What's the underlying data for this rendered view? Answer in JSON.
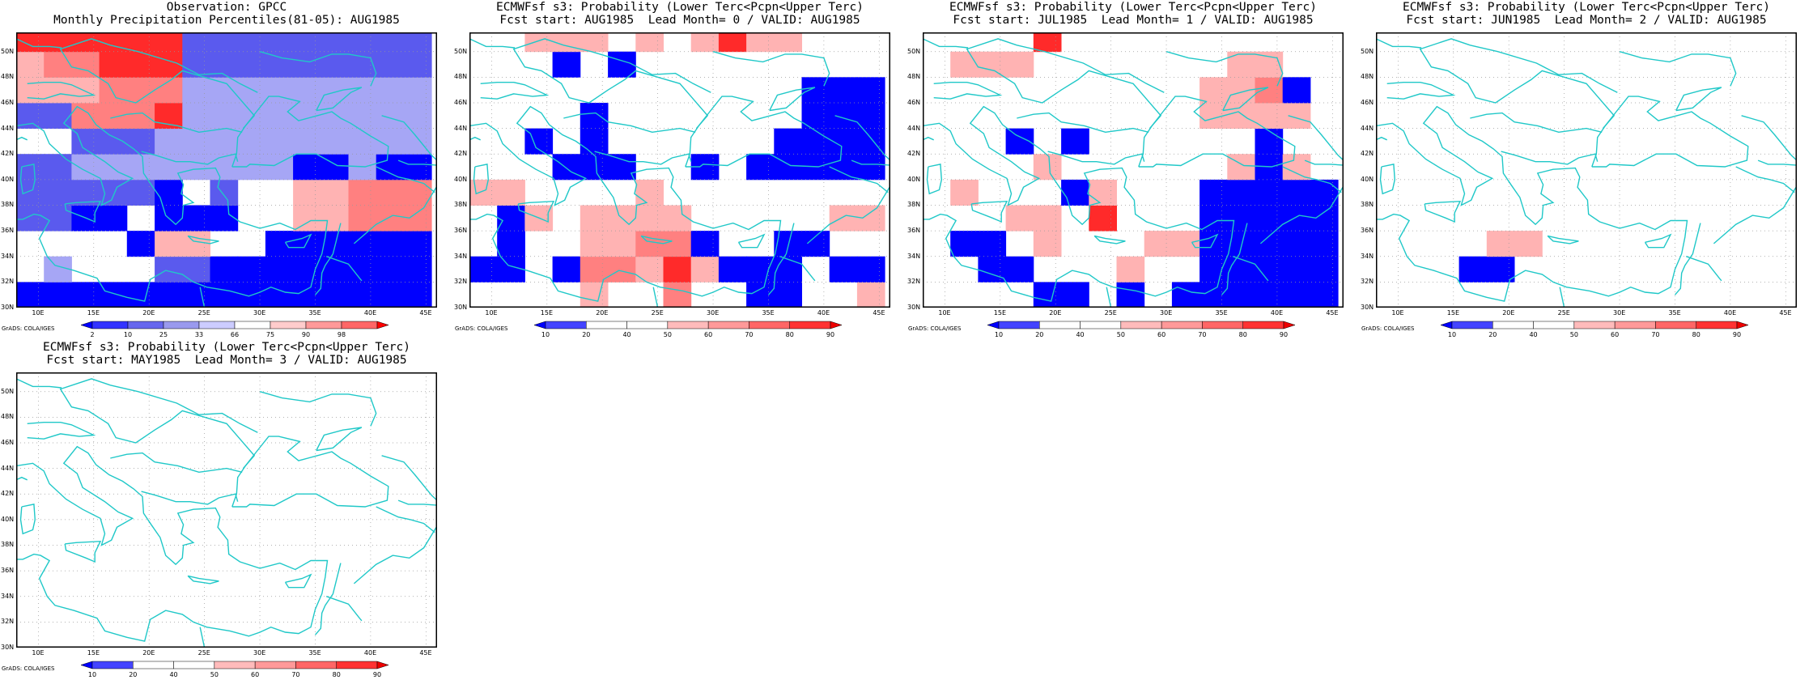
{
  "credit": "GrADS: COLA/IGES",
  "lon_labels": [
    "10E",
    "15E",
    "20E",
    "25E",
    "30E",
    "35E",
    "40E",
    "45E"
  ],
  "lat_labels": [
    "30N",
    "32N",
    "34N",
    "36N",
    "38N",
    "40N",
    "42N",
    "44N",
    "46N",
    "48N",
    "50N"
  ],
  "extent": {
    "lon": [
      8,
      46
    ],
    "lat": [
      30,
      51.5
    ]
  },
  "colorbars": {
    "obs": {
      "labels": [
        "2",
        "10",
        "25",
        "33",
        "66",
        "75",
        "90",
        "98"
      ],
      "colors": [
        "#0000ff",
        "#3333ff",
        "#6666ee",
        "#9999ee",
        "#ccccff",
        "#ffffff",
        "#ffcccc",
        "#ff9999",
        "#ff6666",
        "#ff0000"
      ]
    },
    "prob": {
      "labels": [
        "10",
        "20",
        "40",
        "50",
        "60",
        "70",
        "80",
        "90"
      ],
      "colors": [
        "#0000ff",
        "#4444ff",
        "#ffffff",
        "#ffffff",
        "#ffbbbb",
        "#ff9999",
        "#ff6666",
        "#ff3333",
        "#ee0000"
      ]
    }
  },
  "panels": [
    {
      "id": "obs",
      "title1": "Observation: GPCC",
      "title2": "Monthly Precipitation Percentiles(81-05): AUG1985",
      "bar": "obs"
    },
    {
      "id": "lead0",
      "title1": "ECMWFsf s3: Probability (Lower Terc<Pcpn<Upper Terc)",
      "title2": "Fcst start: AUG1985  Lead Month= 0 / VALID: AUG1985",
      "bar": "prob"
    },
    {
      "id": "lead1",
      "title1": "ECMWFsf s3: Probability (Lower Terc<Pcpn<Upper Terc)",
      "title2": "Fcst start: JUL1985  Lead Month= 1 / VALID: AUG1985",
      "bar": "prob"
    },
    {
      "id": "lead2",
      "title1": "ECMWFsf s3: Probability (Lower Terc<Pcpn<Upper Terc)",
      "title2": "Fcst start: JUN1985  Lead Month= 2 / VALID: AUG1985",
      "bar": "prob"
    },
    {
      "id": "lead3",
      "title1": "ECMWFsf s3: Probability (Lower Terc<Pcpn<Upper Terc)",
      "title2": "Fcst start: MAY1985  Lead Month= 3 / VALID: AUG1985",
      "bar": "prob"
    }
  ],
  "chart_data": {
    "type": "heatmap",
    "grid_note_units": "2.5 deg lon x 2 deg lat cells starting 8E,30N; codes: 0 white, -1 light blue, -2 medium blue, -3 blue, -4 deep blue, 1 light red, 2 medium red, 3 red, 4 deep red",
    "cells": {
      "obs": [
        [
          -3,
          -3,
          -3,
          -3,
          -3,
          -3,
          -3,
          -3,
          -3,
          -3,
          -3,
          -3,
          -3,
          -3,
          -3
        ],
        [
          0,
          -1,
          0,
          0,
          0,
          -2,
          -2,
          -3,
          -3,
          -3,
          -3,
          -3,
          -3,
          -3,
          -3
        ],
        [
          0,
          0,
          0,
          0,
          -3,
          1,
          1,
          0,
          0,
          -3,
          -3,
          -3,
          -3,
          -3,
          -3
        ],
        [
          -2,
          -2,
          -3,
          -3,
          0,
          -3,
          -3,
          -3,
          0,
          0,
          1,
          1,
          2,
          2,
          2
        ],
        [
          -2,
          -2,
          -2,
          -2,
          -2,
          -3,
          0,
          -2,
          0,
          0,
          1,
          1,
          2,
          2,
          2
        ],
        [
          -2,
          -2,
          -1,
          -1,
          -1,
          -1,
          -1,
          -1,
          -1,
          -1,
          -3,
          -3,
          -1,
          -3,
          -3
        ],
        [
          0,
          0,
          -2,
          -2,
          -2,
          -1,
          -1,
          -1,
          -1,
          -1,
          -1,
          -1,
          -1,
          -1,
          -1
        ],
        [
          -2,
          -2,
          2,
          2,
          2,
          3,
          -1,
          -1,
          -1,
          -1,
          -1,
          -1,
          -1,
          -1,
          -1
        ],
        [
          1,
          1,
          1,
          2,
          2,
          2,
          -1,
          -1,
          -1,
          -1,
          -1,
          -1,
          -1,
          -1,
          -1
        ],
        [
          1,
          2,
          2,
          3,
          3,
          3,
          -2,
          -2,
          -2,
          -2,
          -2,
          -2,
          -2,
          -2,
          -2
        ],
        [
          3,
          3,
          3,
          3,
          3,
          3,
          -2,
          -2,
          -2,
          -2,
          -2,
          -2,
          -2,
          -2,
          -2
        ]
      ],
      "lead0": [
        [
          0,
          0,
          0,
          0,
          1,
          0,
          0,
          2,
          0,
          0,
          -3,
          -3,
          0,
          0,
          1
        ],
        [
          -3,
          -3,
          0,
          -3,
          2,
          2,
          1,
          3,
          1,
          -3,
          -3,
          -3,
          0,
          -3,
          -3
        ],
        [
          0,
          -3,
          0,
          0,
          1,
          1,
          2,
          2,
          -3,
          0,
          0,
          -3,
          -3,
          0,
          0
        ],
        [
          0,
          -3,
          1,
          0,
          1,
          1,
          1,
          1,
          0,
          0,
          0,
          0,
          0,
          1,
          1
        ],
        [
          1,
          1,
          0,
          0,
          0,
          0,
          1,
          0,
          0,
          0,
          0,
          0,
          0,
          0,
          0
        ],
        [
          0,
          0,
          0,
          -3,
          -3,
          -3,
          0,
          0,
          -3,
          0,
          -3,
          -3,
          -3,
          -3,
          -3
        ],
        [
          0,
          0,
          -3,
          0,
          -3,
          0,
          0,
          0,
          0,
          0,
          0,
          -3,
          -3,
          -3,
          -3
        ],
        [
          0,
          0,
          0,
          0,
          -3,
          0,
          0,
          0,
          0,
          0,
          0,
          0,
          -3,
          -3,
          -3
        ],
        [
          0,
          0,
          0,
          0,
          0,
          0,
          0,
          0,
          0,
          0,
          0,
          0,
          -3,
          -3,
          -3
        ],
        [
          0,
          0,
          0,
          -3,
          0,
          -3,
          0,
          0,
          0,
          0,
          0,
          0,
          0,
          0,
          0
        ],
        [
          0,
          0,
          1,
          1,
          1,
          0,
          1,
          0,
          1,
          3,
          1,
          1,
          0,
          0,
          0
        ]
      ],
      "lead1": [
        [
          0,
          0,
          0,
          0,
          -3,
          -3,
          0,
          -3,
          0,
          -3,
          -3,
          -3,
          -3,
          -3,
          -3
        ],
        [
          0,
          0,
          -3,
          -3,
          0,
          0,
          0,
          1,
          0,
          0,
          -3,
          -3,
          -3,
          -3,
          -3
        ],
        [
          0,
          -3,
          -3,
          0,
          1,
          0,
          0,
          0,
          1,
          1,
          -3,
          -3,
          -3,
          -3,
          -3
        ],
        [
          0,
          0,
          0,
          1,
          1,
          0,
          3,
          0,
          0,
          0,
          -3,
          -3,
          -3,
          -3,
          -3
        ],
        [
          0,
          1,
          0,
          0,
          0,
          -3,
          1,
          0,
          0,
          0,
          -3,
          -3,
          -3,
          -3,
          -3
        ],
        [
          0,
          0,
          0,
          0,
          1,
          0,
          0,
          0,
          0,
          0,
          0,
          1,
          -3,
          1,
          0
        ],
        [
          0,
          0,
          0,
          -3,
          0,
          -3,
          0,
          0,
          0,
          0,
          0,
          0,
          -3,
          0,
          0
        ],
        [
          0,
          0,
          0,
          0,
          0,
          0,
          0,
          0,
          0,
          0,
          1,
          1,
          1,
          1,
          0
        ],
        [
          0,
          0,
          0,
          0,
          0,
          0,
          0,
          0,
          0,
          0,
          1,
          1,
          2,
          -3,
          0
        ],
        [
          0,
          1,
          1,
          1,
          0,
          0,
          0,
          0,
          0,
          0,
          0,
          1,
          1,
          0,
          0
        ],
        [
          0,
          0,
          0,
          0,
          3,
          0,
          0,
          0,
          0,
          0,
          0,
          0,
          0,
          0,
          0
        ]
      ],
      "lead2": [
        [
          0,
          0,
          0,
          0,
          0,
          0,
          0,
          0,
          0,
          0,
          0,
          0,
          0,
          0,
          0
        ],
        [
          0,
          0,
          0,
          -3,
          -3,
          0,
          0,
          0,
          0,
          0,
          0,
          0,
          0,
          0,
          0
        ],
        [
          0,
          0,
          0,
          0,
          1,
          1,
          0,
          0,
          0,
          0,
          0,
          0,
          0,
          0,
          0
        ],
        [
          0,
          0,
          0,
          0,
          0,
          0,
          0,
          0,
          0,
          0,
          0,
          0,
          0,
          0,
          0
        ],
        [
          0,
          0,
          0,
          0,
          0,
          0,
          0,
          0,
          0,
          0,
          0,
          0,
          0,
          0,
          0
        ],
        [
          0,
          0,
          0,
          0,
          0,
          0,
          0,
          0,
          0,
          0,
          0,
          0,
          0,
          0,
          0
        ],
        [
          0,
          0,
          0,
          0,
          0,
          0,
          0,
          0,
          0,
          0,
          0,
          0,
          0,
          0,
          0
        ],
        [
          0,
          0,
          0,
          0,
          0,
          0,
          0,
          0,
          0,
          0,
          0,
          0,
          0,
          0,
          0
        ],
        [
          0,
          0,
          0,
          0,
          0,
          0,
          0,
          0,
          0,
          0,
          0,
          0,
          0,
          0,
          0
        ],
        [
          0,
          0,
          0,
          0,
          0,
          0,
          0,
          0,
          0,
          0,
          0,
          0,
          0,
          0,
          0
        ],
        [
          0,
          0,
          0,
          0,
          0,
          0,
          0,
          0,
          0,
          0,
          0,
          0,
          0,
          0,
          0
        ]
      ],
      "lead3": [
        [
          0,
          0,
          0,
          0,
          0,
          0,
          0,
          0,
          0,
          0,
          0,
          0,
          0,
          0,
          0
        ],
        [
          0,
          0,
          0,
          0,
          0,
          0,
          0,
          0,
          0,
          0,
          0,
          0,
          0,
          0,
          0
        ],
        [
          0,
          0,
          0,
          0,
          0,
          0,
          0,
          0,
          0,
          0,
          0,
          0,
          0,
          0,
          0
        ],
        [
          0,
          0,
          0,
          0,
          0,
          0,
          0,
          0,
          0,
          0,
          0,
          0,
          0,
          0,
          0
        ],
        [
          0,
          0,
          0,
          0,
          0,
          0,
          0,
          0,
          0,
          0,
          0,
          0,
          0,
          0,
          0
        ],
        [
          0,
          0,
          0,
          0,
          0,
          0,
          0,
          0,
          0,
          0,
          0,
          0,
          0,
          0,
          0
        ],
        [
          0,
          0,
          0,
          0,
          0,
          0,
          0,
          0,
          0,
          0,
          0,
          0,
          0,
          0,
          0
        ],
        [
          0,
          0,
          0,
          0,
          0,
          0,
          0,
          0,
          0,
          0,
          0,
          0,
          0,
          0,
          0
        ],
        [
          0,
          0,
          0,
          0,
          0,
          0,
          0,
          0,
          0,
          0,
          0,
          0,
          0,
          0,
          0
        ],
        [
          0,
          0,
          0,
          0,
          0,
          0,
          0,
          0,
          0,
          0,
          0,
          0,
          0,
          0,
          0
        ],
        [
          0,
          0,
          0,
          0,
          0,
          0,
          0,
          0,
          0,
          0,
          0,
          0,
          0,
          0,
          0
        ]
      ]
    }
  }
}
